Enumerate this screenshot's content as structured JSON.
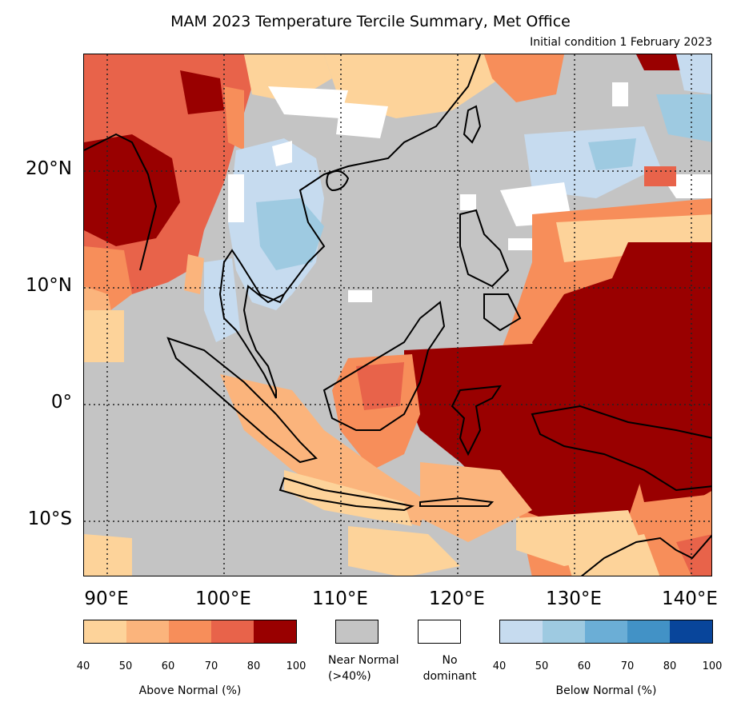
{
  "title": "MAM 2023 Temperature Tercile Summary, Met Office",
  "subtitle": "Initial condition 1 February 2023",
  "lat_labels": [
    "20°N",
    "10°N",
    "0°",
    "10°S"
  ],
  "lon_labels": [
    "90°E",
    "100°E",
    "110°E",
    "120°E",
    "130°E",
    "140°E"
  ],
  "colors": {
    "near_normal": "#c4c4c4",
    "no_dominant": "#ffffff",
    "above": [
      "#fdd39a",
      "#fbb47c",
      "#f78e5a",
      "#e8634a",
      "#990000"
    ],
    "below": [
      "#c6dbef",
      "#9ecae1",
      "#6baed6",
      "#4292c6",
      "#08459b"
    ]
  },
  "above_normal": {
    "ticks": [
      "40",
      "50",
      "60",
      "70",
      "80",
      "100"
    ],
    "label": "Above Normal (%)"
  },
  "near_normal": {
    "label_line1": "Near Normal",
    "label_line2": "(>40%)"
  },
  "no_dominant": {
    "label_line1": "No",
    "label_line2": "dominant"
  },
  "below_normal": {
    "ticks": [
      "40",
      "50",
      "60",
      "70",
      "80",
      "100"
    ],
    "label": "Below Normal (%)"
  }
}
